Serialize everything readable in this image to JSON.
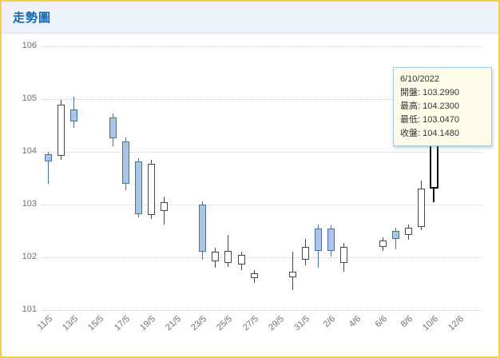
{
  "window": {
    "title": "走勢圖"
  },
  "chart_data": {
    "type": "candlestick",
    "title": "走勢圖",
    "ylim": [
      101,
      106
    ],
    "y_axis": {
      "min": 101,
      "max": 106,
      "ticks": [
        106,
        105,
        104,
        103,
        102,
        101
      ]
    },
    "x_axis": {
      "ticks": [
        {
          "label": "11/5",
          "day": 0
        },
        {
          "label": "13/5",
          "day": 2
        },
        {
          "label": "15/5",
          "day": 4
        },
        {
          "label": "17/5",
          "day": 6
        },
        {
          "label": "19/5",
          "day": 8
        },
        {
          "label": "21/5",
          "day": 10
        },
        {
          "label": "23/5",
          "day": 12
        },
        {
          "label": "25/5",
          "day": 14
        },
        {
          "label": "27/5",
          "day": 16
        },
        {
          "label": "29/5",
          "day": 18
        },
        {
          "label": "31/5",
          "day": 20
        },
        {
          "label": "2/6",
          "day": 22
        },
        {
          "label": "4/6",
          "day": 24
        },
        {
          "label": "6/6",
          "day": 26
        },
        {
          "label": "8/6",
          "day": 28
        },
        {
          "label": "10/6",
          "day": 30
        },
        {
          "label": "12/6",
          "day": 32
        }
      ]
    },
    "candles": [
      {
        "date": "11/5",
        "day": 0,
        "open": 103.95,
        "high": 104.0,
        "low": 103.4,
        "close": 103.82
      },
      {
        "date": "12/5",
        "day": 1,
        "open": 103.92,
        "high": 104.98,
        "low": 103.85,
        "close": 104.9
      },
      {
        "date": "13/5",
        "day": 2,
        "open": 104.8,
        "high": 105.05,
        "low": 104.45,
        "close": 104.57
      },
      {
        "date": "16/5",
        "day": 5,
        "open": 104.65,
        "high": 104.72,
        "low": 104.1,
        "close": 104.25
      },
      {
        "date": "17/5",
        "day": 6,
        "open": 104.2,
        "high": 104.27,
        "low": 103.28,
        "close": 103.4
      },
      {
        "date": "18/5",
        "day": 7,
        "open": 103.82,
        "high": 103.88,
        "low": 102.75,
        "close": 102.82
      },
      {
        "date": "19/5",
        "day": 8,
        "open": 102.8,
        "high": 103.85,
        "low": 102.72,
        "close": 103.78
      },
      {
        "date": "20/5",
        "day": 9,
        "open": 102.88,
        "high": 103.15,
        "low": 102.62,
        "close": 103.05
      },
      {
        "date": "23/5",
        "day": 12,
        "open": 103.0,
        "high": 103.06,
        "low": 101.95,
        "close": 102.1
      },
      {
        "date": "24/5",
        "day": 13,
        "open": 101.92,
        "high": 102.18,
        "low": 101.8,
        "close": 102.1
      },
      {
        "date": "25/5",
        "day": 14,
        "open": 101.9,
        "high": 102.42,
        "low": 101.82,
        "close": 102.12
      },
      {
        "date": "26/5",
        "day": 15,
        "open": 101.86,
        "high": 102.1,
        "low": 101.75,
        "close": 102.04
      },
      {
        "date": "27/5",
        "day": 16,
        "open": 101.6,
        "high": 101.76,
        "low": 101.52,
        "close": 101.7
      },
      {
        "date": "30/5",
        "day": 19,
        "open": 101.62,
        "high": 102.1,
        "low": 101.38,
        "close": 101.72
      },
      {
        "date": "31/5",
        "day": 20,
        "open": 101.95,
        "high": 102.35,
        "low": 101.85,
        "close": 102.2
      },
      {
        "date": "1/6",
        "day": 21,
        "open": 102.55,
        "high": 102.62,
        "low": 101.8,
        "close": 102.12
      },
      {
        "date": "2/6",
        "day": 22,
        "open": 102.55,
        "high": 102.6,
        "low": 102.02,
        "close": 102.12
      },
      {
        "date": "3/6",
        "day": 23,
        "open": 101.9,
        "high": 102.28,
        "low": 101.72,
        "close": 102.2
      },
      {
        "date": "6/6",
        "day": 26,
        "open": 102.2,
        "high": 102.38,
        "low": 102.12,
        "close": 102.32
      },
      {
        "date": "7/6",
        "day": 27,
        "open": 102.5,
        "high": 102.56,
        "low": 102.15,
        "close": 102.35
      },
      {
        "date": "8/6",
        "day": 28,
        "open": 102.42,
        "high": 102.62,
        "low": 102.34,
        "close": 102.56
      },
      {
        "date": "9/6",
        "day": 29,
        "open": 102.58,
        "high": 103.45,
        "low": 102.52,
        "close": 103.3
      },
      {
        "date": "10/6",
        "day": 30,
        "open": 103.299,
        "high": 104.23,
        "low": 103.047,
        "close": 104.148,
        "highlight": true
      }
    ],
    "highlighted_date": "10/6",
    "colors": {
      "down_fill": "#aac6e2",
      "down_border": "#48719f",
      "up_fill": "#ffffff",
      "up_border": "#474747",
      "highlight_border": "#111111",
      "grid": "#cfcfcf",
      "axis_text": "#707070"
    },
    "legend": "none",
    "grid": "horizontal-dotted"
  },
  "tooltip": {
    "date_label": "6/10/2022",
    "rows": [
      {
        "label": "開盤",
        "value": "103.2990"
      },
      {
        "label": "最高",
        "value": "104.2300"
      },
      {
        "label": "最低",
        "value": "103.0470"
      },
      {
        "label": "收盤",
        "value": "104.1480"
      }
    ]
  }
}
